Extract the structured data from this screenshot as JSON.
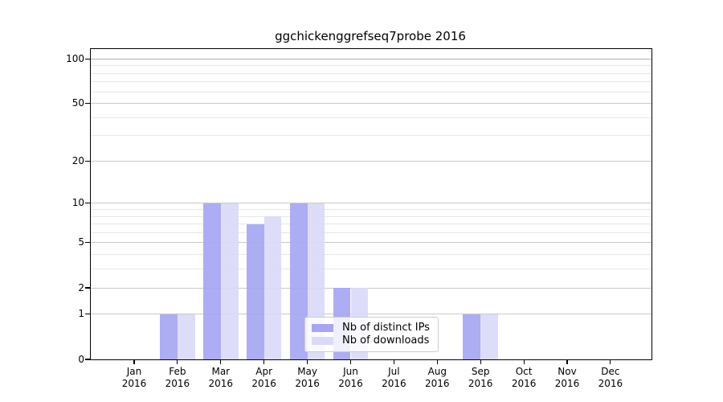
{
  "title": "ggchickenggrefseq7probe 2016",
  "axis": {
    "year": "2016",
    "months": [
      "Jan",
      "Feb",
      "Mar",
      "Apr",
      "May",
      "Jun",
      "Jul",
      "Aug",
      "Sep",
      "Oct",
      "Nov",
      "Dec"
    ],
    "yticks": [
      0,
      1,
      2,
      5,
      10,
      20,
      50,
      100
    ],
    "minor_yticks": [
      3,
      4,
      6,
      7,
      8,
      9,
      30,
      40,
      60,
      70,
      80,
      90
    ]
  },
  "colors": {
    "distinct_ips": "#a6a6f2",
    "downloads": "#dadaf8",
    "grid_major": "#c9c9c9",
    "grid_top": "#b3b3b3",
    "grid_minor": "#e7e7e7"
  },
  "chart_data": {
    "type": "bar",
    "title": "ggchickenggrefseq7probe 2016",
    "categories": [
      "Jan 2016",
      "Feb 2016",
      "Mar 2016",
      "Apr 2016",
      "May 2016",
      "Jun 2016",
      "Jul 2016",
      "Aug 2016",
      "Sep 2016",
      "Oct 2016",
      "Nov 2016",
      "Dec 2016"
    ],
    "series": [
      {
        "name": "Nb of distinct IPs",
        "color": "#a6a6f2",
        "values": [
          0,
          1,
          10,
          7,
          10,
          2,
          0,
          0,
          1,
          0,
          0,
          0
        ]
      },
      {
        "name": "Nb of downloads",
        "color": "#dadaf8",
        "values": [
          0,
          1,
          10,
          8,
          10,
          2,
          0,
          0,
          1,
          0,
          0,
          0
        ]
      }
    ],
    "xlabel": "",
    "ylabel": "",
    "yscale": "log1p",
    "ylim": [
      0,
      116
    ],
    "yticks": [
      0,
      1,
      2,
      5,
      10,
      20,
      50,
      100
    ],
    "grid": "horizontal major+minor",
    "legend_position": "inside lower-center"
  }
}
